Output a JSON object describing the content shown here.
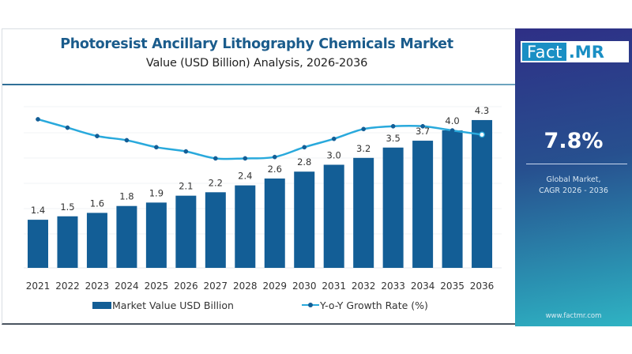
{
  "header": {
    "title": "Photoresist Ancillary Lithography Chemicals Market",
    "subtitle": "Value (USD Billion) Analysis, 2026-2036"
  },
  "brand": {
    "logo_left": "Fact",
    "logo_right": ".MR",
    "website": "www.factmr.com"
  },
  "highlight": {
    "value": "7.8%",
    "label_line1": "Global Market,",
    "label_line2": "CAGR 2026 - 2036"
  },
  "colors": {
    "bar": "#135e96",
    "line": "#29a9dc",
    "marker": "#135e96",
    "title": "#1b5c8c"
  },
  "chart_data": {
    "type": "bar",
    "title": "Photoresist Ancillary Lithography Chemicals Market",
    "subtitle": "Value (USD Billion) Analysis, 2026-2036",
    "xlabel": "",
    "ylabel": "",
    "categories": [
      "2021",
      "2022",
      "2023",
      "2024",
      "2025",
      "2026",
      "2027",
      "2028",
      "2029",
      "2030",
      "2031",
      "2032",
      "2033",
      "2034",
      "2035",
      "2036"
    ],
    "series": [
      {
        "name": "Market Value USD Billion",
        "type": "bar",
        "values": [
          1.4,
          1.5,
          1.6,
          1.8,
          1.9,
          2.1,
          2.2,
          2.4,
          2.6,
          2.8,
          3.0,
          3.2,
          3.5,
          3.7,
          4.0,
          4.3
        ],
        "labels": [
          "1.4",
          "1.5",
          "1.6",
          "1.8",
          "1.9",
          "2.1",
          "2.2",
          "2.4",
          "2.6",
          "2.8",
          "3.0",
          "3.2",
          "3.5",
          "3.7",
          "4.0",
          "4.3"
        ]
      },
      {
        "name": "Y-o-Y Growth Rate (%)",
        "type": "line",
        "values_estimated": [
          9.2,
          8.6,
          8.0,
          7.7,
          7.2,
          6.9,
          6.4,
          6.4,
          6.5,
          7.2,
          7.8,
          8.5,
          8.7,
          8.7,
          8.4,
          8.1
        ],
        "note": "no axis or labels shown; values estimated relative levels"
      }
    ],
    "ylim": [
      0,
      4.3
    ],
    "grid": true,
    "legend": "bottom",
    "legend_entries": [
      "Market Value USD Billion",
      "Y-o-Y Growth Rate (%)"
    ]
  }
}
